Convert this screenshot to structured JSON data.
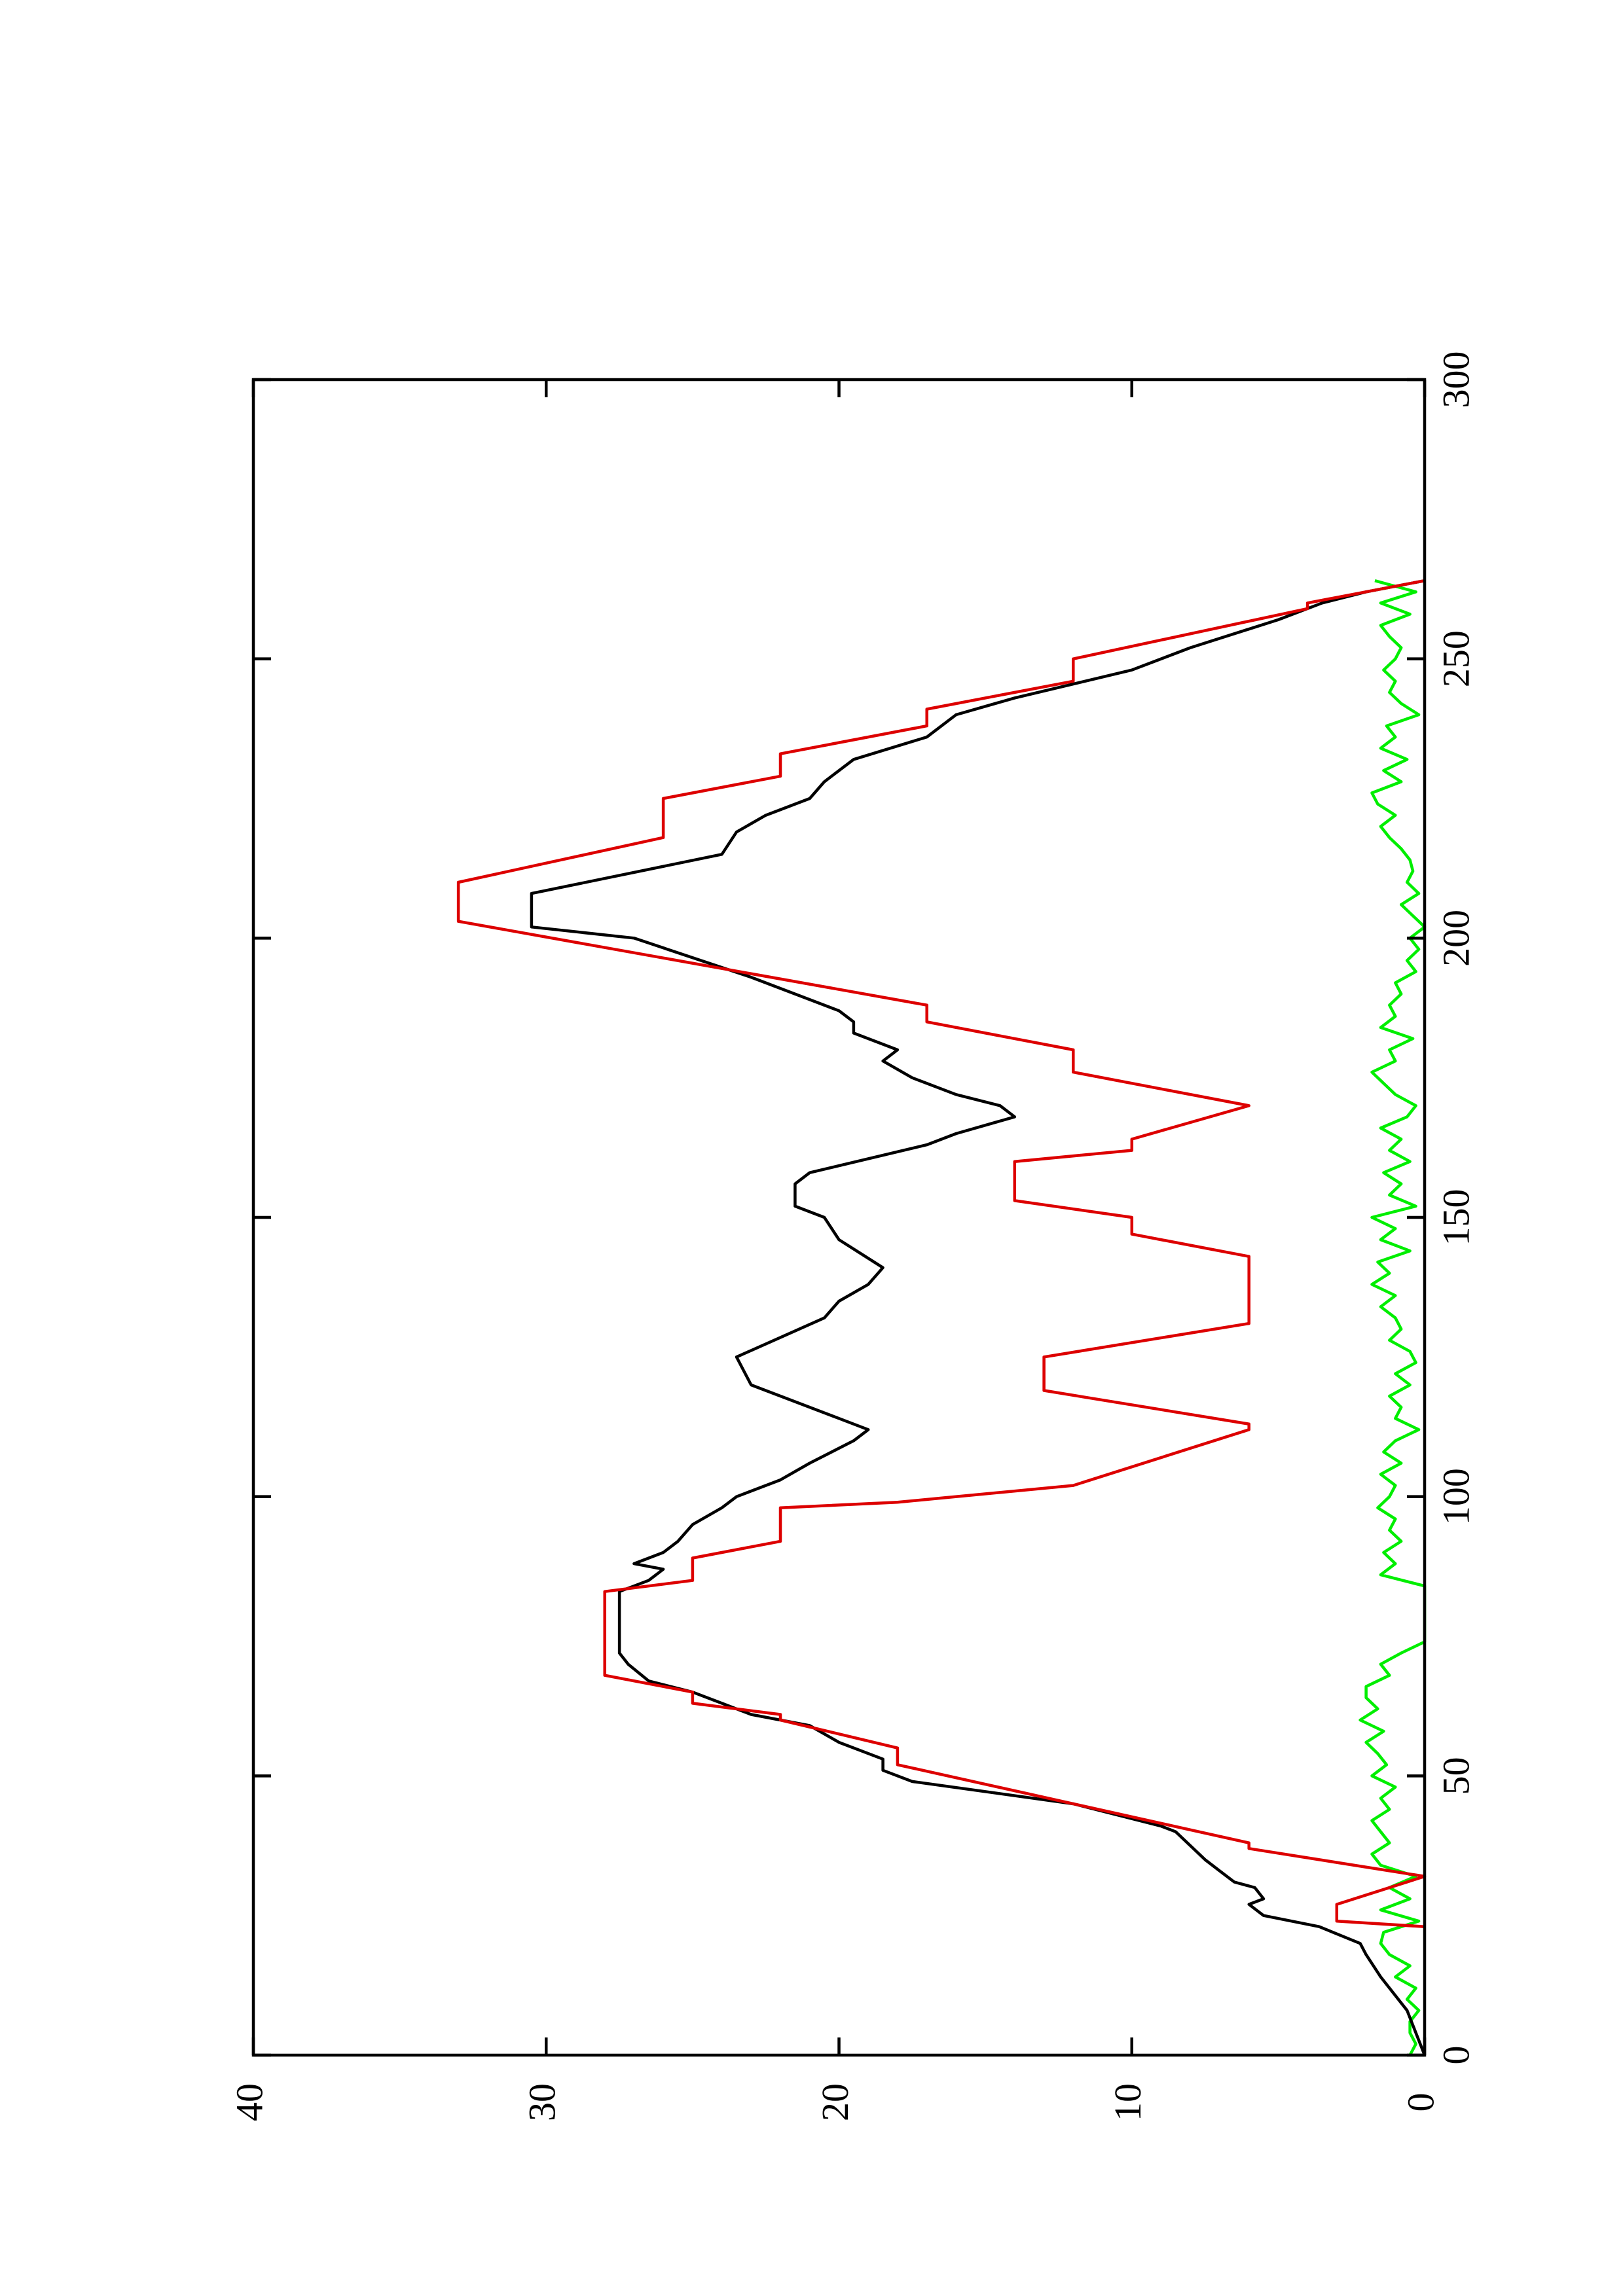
{
  "chart_data": {
    "type": "line",
    "xlim": [
      0,
      300
    ],
    "xticks": [
      0,
      50,
      100,
      150,
      200,
      250,
      300
    ],
    "ylim": [
      0,
      40
    ],
    "yticks": [
      0,
      10,
      20,
      30,
      40
    ],
    "rotated": true,
    "series": [
      {
        "color": "#00ee00",
        "x": [
          0,
          2,
          4,
          6,
          8,
          10,
          12,
          14,
          16,
          18,
          20,
          22,
          24,
          26,
          28,
          30,
          32,
          34,
          36,
          38,
          40,
          42,
          44,
          46,
          48,
          50,
          52,
          54,
          56,
          58,
          60,
          62,
          64,
          66,
          68,
          70,
          72,
          74,
          84,
          86,
          88,
          90,
          92,
          94,
          96,
          98,
          100,
          102,
          104,
          106,
          108,
          110,
          112,
          114,
          116,
          118,
          120,
          122,
          124,
          126,
          128,
          130,
          132,
          134,
          136,
          138,
          140,
          142,
          144,
          146,
          148,
          150,
          152,
          154,
          156,
          158,
          160,
          162,
          164,
          166,
          168,
          170,
          172,
          174,
          176,
          178,
          180,
          182,
          184,
          186,
          188,
          190,
          192,
          194,
          196,
          198,
          200,
          202,
          204,
          206,
          208,
          210,
          212,
          214,
          216,
          218,
          220,
          222,
          224,
          226,
          228,
          230,
          232,
          234,
          236,
          238,
          240,
          242,
          244,
          246,
          248,
          250,
          252,
          254,
          256,
          258,
          260,
          262,
          264
        ],
        "values": [
          0.5,
          0.3,
          0.5,
          0.5,
          0.2,
          0.6,
          0.3,
          1.0,
          0.5,
          1.2,
          1.5,
          1.4,
          0.2,
          1.5,
          0.5,
          1.2,
          0.3,
          1.5,
          1.8,
          1.2,
          1.5,
          1.8,
          1.2,
          1.5,
          1.0,
          1.8,
          1.3,
          1.6,
          2.0,
          1.4,
          2.2,
          1.6,
          2.0,
          2.0,
          1.2,
          1.5,
          0.8,
          0,
          0,
          1.5,
          1.0,
          1.4,
          0.8,
          1.2,
          1.0,
          1.6,
          1.2,
          1.0,
          1.5,
          0.8,
          1.4,
          1.0,
          0.2,
          1.0,
          0.8,
          1.2,
          0.5,
          1.0,
          0.3,
          0.5,
          1.2,
          0.8,
          1.0,
          1.5,
          1.0,
          1.8,
          1.2,
          1.6,
          0.5,
          1.5,
          1.0,
          1.8,
          0.3,
          1.2,
          0.8,
          1.4,
          0.5,
          1.2,
          0.8,
          1.5,
          0.6,
          0.3,
          1.0,
          1.4,
          1.8,
          1.0,
          1.2,
          0.4,
          1.5,
          1.0,
          1.2,
          0.8,
          1.0,
          0.3,
          0.6,
          0.2,
          0.5,
          0,
          0.4,
          0.8,
          0.2,
          0.6,
          0.4,
          0.5,
          0.8,
          1.2,
          1.5,
          1.0,
          1.6,
          1.8,
          0.8,
          1.4,
          0.6,
          1.5,
          1.0,
          1.3,
          0.2,
          0.8,
          1.2,
          1.0,
          1.4,
          1.0,
          0.8,
          1.2,
          1.5,
          0.5,
          1.5,
          0.3,
          1.7
        ]
      },
      {
        "color": "#000000",
        "x": [
          0,
          8,
          14,
          18,
          20,
          23,
          25,
          27,
          28,
          30,
          31,
          33,
          35,
          40,
          41,
          45,
          49,
          51,
          53,
          56,
          59,
          61,
          63,
          65,
          67,
          70,
          72,
          80,
          83,
          85,
          87,
          88,
          90,
          92,
          95,
          98,
          100,
          103,
          106,
          110,
          112,
          114,
          120,
          125,
          132,
          135,
          138,
          141,
          146,
          150,
          152,
          156,
          158,
          163,
          165,
          168,
          170,
          172,
          175,
          178,
          180,
          183,
          185,
          187,
          193,
          200,
          202,
          204,
          208,
          215,
          219,
          222,
          225,
          228,
          232,
          236,
          240,
          243,
          248,
          252,
          257,
          260,
          262,
          264
        ],
        "values": [
          0,
          0.6,
          1.5,
          2,
          2.2,
          3.6,
          5.5,
          6,
          5.5,
          5.8,
          6.5,
          7,
          7.5,
          8.5,
          9,
          12,
          17.5,
          18.5,
          18.5,
          20,
          21,
          23,
          24,
          25,
          26.5,
          27.2,
          27.5,
          27.5,
          27.5,
          26.5,
          26,
          27,
          26,
          25.5,
          25,
          24,
          23.5,
          22,
          21,
          19.5,
          19,
          20,
          23,
          23.5,
          20.5,
          20,
          19,
          18.5,
          20,
          20.5,
          21.5,
          21.5,
          21,
          17,
          16,
          14,
          14.5,
          16,
          17.5,
          18.5,
          18,
          19.5,
          19.5,
          20,
          23,
          27,
          30.5,
          30.5,
          30.5,
          24,
          23.5,
          22.5,
          21,
          20.5,
          19.5,
          17,
          16,
          14,
          10,
          8,
          5,
          3.5,
          2,
          0
        ]
      },
      {
        "color": "#dd0000",
        "x": [
          23,
          24,
          27,
          32,
          37,
          38,
          52,
          55,
          60,
          61,
          63,
          65,
          68,
          83,
          85,
          89,
          92,
          98,
          99,
          102,
          112,
          113,
          119,
          125,
          131,
          143,
          147,
          150,
          153,
          160,
          162,
          164,
          170,
          176,
          180,
          185,
          188,
          203,
          210,
          218,
          225,
          229,
          233,
          238,
          241,
          246,
          250,
          259,
          260,
          264
        ],
        "values": [
          0,
          3,
          3,
          0,
          6,
          6,
          18,
          18,
          22,
          22,
          25,
          25,
          28,
          28,
          25,
          25,
          22,
          22,
          18,
          12,
          6,
          6,
          13,
          13,
          6,
          6,
          10,
          10,
          14,
          14,
          10,
          10,
          6,
          12,
          12,
          17,
          17,
          33,
          33,
          26,
          26,
          22,
          22,
          17,
          17,
          12,
          12,
          4,
          4,
          0
        ]
      }
    ]
  }
}
